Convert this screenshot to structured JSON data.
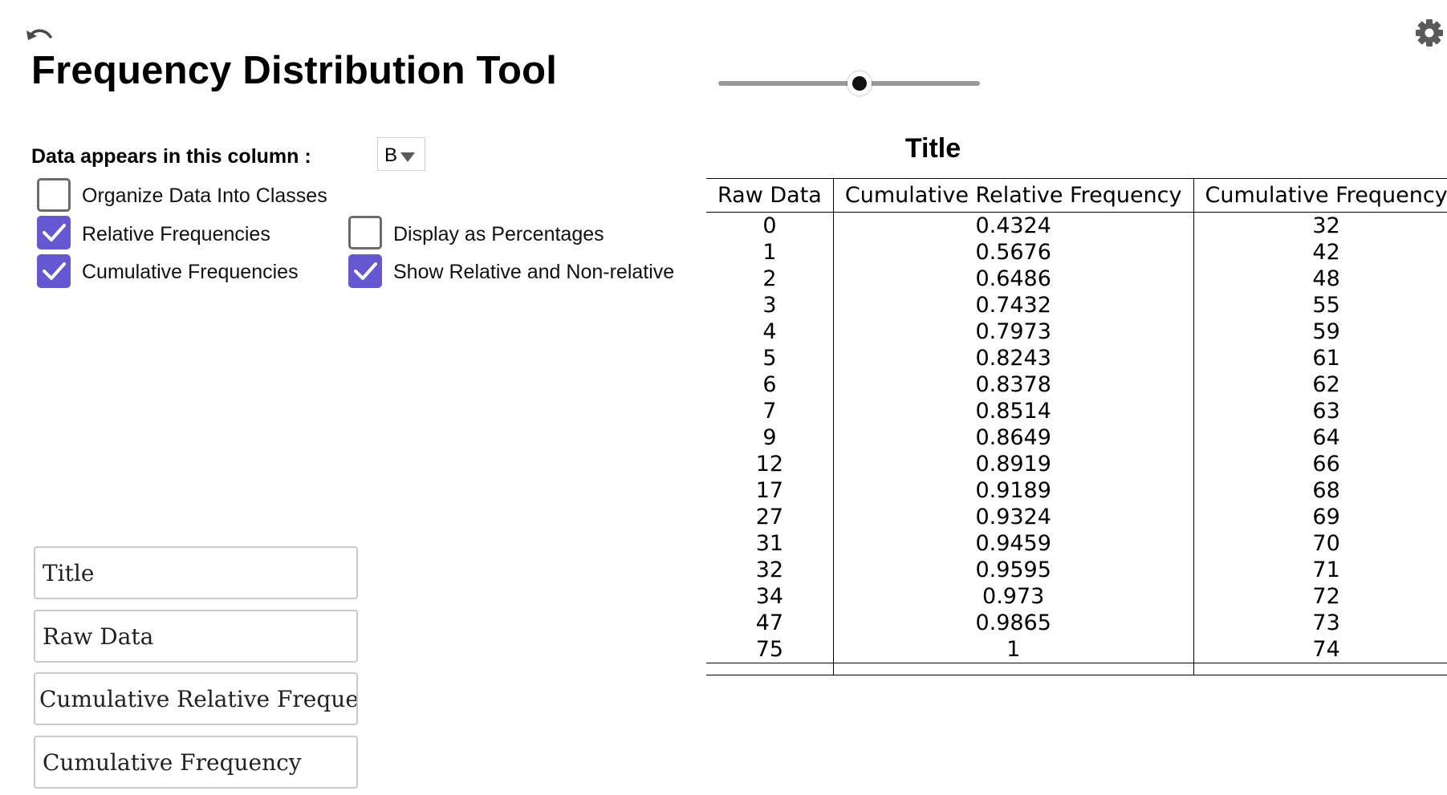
{
  "header": {
    "title": "Frequency Distribution Tool"
  },
  "slider": {
    "value_fraction": 0.54
  },
  "column_selector": {
    "label": "Data appears in this column :",
    "value": "B"
  },
  "options": {
    "organize_classes": {
      "label": "Organize Data Into Classes",
      "checked": false
    },
    "relative": {
      "label": "Relative Frequencies",
      "checked": true
    },
    "percentages": {
      "label": "Display as Percentages",
      "checked": false
    },
    "cumulative": {
      "label": "Cumulative Frequencies",
      "checked": true
    },
    "show_both": {
      "label": "Show Relative and Non-relative",
      "checked": true
    }
  },
  "fields": {
    "title": "Title",
    "raw_data": "Raw Data",
    "cum_rel_freq": "Cumulative Relative Frequenc",
    "cum_freq": "Cumulative Frequency"
  },
  "table": {
    "title": "Title",
    "headers": [
      "Raw Data",
      "Cumulative Relative Frequency",
      "Cumulative Frequency"
    ],
    "rows": [
      [
        "0",
        "0.4324",
        "32"
      ],
      [
        "1",
        "0.5676",
        "42"
      ],
      [
        "2",
        "0.6486",
        "48"
      ],
      [
        "3",
        "0.7432",
        "55"
      ],
      [
        "4",
        "0.7973",
        "59"
      ],
      [
        "5",
        "0.8243",
        "61"
      ],
      [
        "6",
        "0.8378",
        "62"
      ],
      [
        "7",
        "0.8514",
        "63"
      ],
      [
        "9",
        "0.8649",
        "64"
      ],
      [
        "12",
        "0.8919",
        "66"
      ],
      [
        "17",
        "0.9189",
        "68"
      ],
      [
        "27",
        "0.9324",
        "69"
      ],
      [
        "31",
        "0.9459",
        "70"
      ],
      [
        "32",
        "0.9595",
        "71"
      ],
      [
        "34",
        "0.973",
        "72"
      ],
      [
        "47",
        "0.9865",
        "73"
      ],
      [
        "75",
        "1",
        "74"
      ]
    ]
  },
  "colors": {
    "checkbox_on": "#6557d2"
  },
  "icons": {
    "undo": "undo-icon",
    "settings": "gear-icon",
    "check": "check-icon"
  }
}
